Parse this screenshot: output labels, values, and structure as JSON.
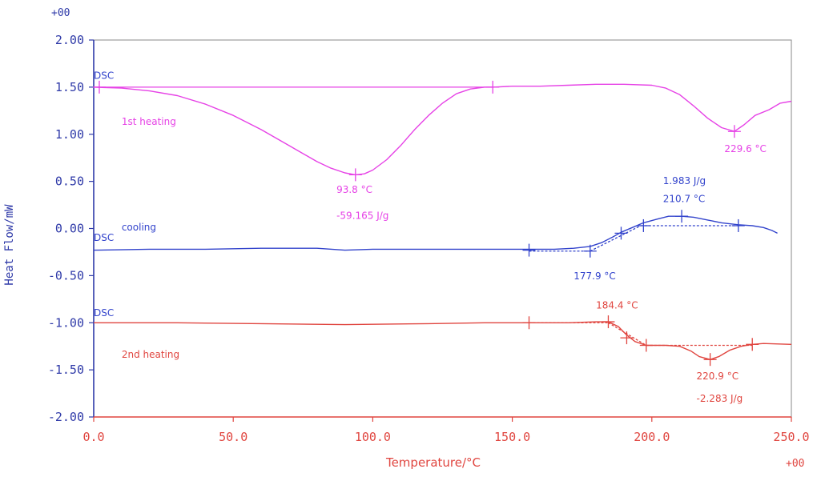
{
  "chart_data": {
    "type": "line",
    "title": "",
    "xlabel": "Temperature/°C",
    "ylabel": "Heat Flow/mW",
    "x_exponent_label": "+00",
    "y_exponent_label": "+00",
    "xlim": [
      0,
      250
    ],
    "ylim": [
      -2.0,
      2.0
    ],
    "grid": false,
    "legend": "none",
    "x_ticks": [
      0,
      50,
      100,
      150,
      200,
      250
    ],
    "x_tick_labels": [
      "0.0",
      "50.0",
      "100.0",
      "150.0",
      "200.0",
      "250.0"
    ],
    "y_ticks": [
      2.0,
      1.5,
      1.0,
      0.5,
      0.0,
      -0.5,
      -1.0,
      -1.5,
      -2.0
    ],
    "y_tick_labels": [
      "2.00",
      "1.50",
      "1.00",
      "0.50",
      "0.00",
      "-0.50",
      "-1.00",
      "-1.50",
      "-2.00"
    ],
    "colors": {
      "axis": "#2f3aa8",
      "xaxis": "#e0453f",
      "frame": "#8a8a8a",
      "magenta": "#e642e6",
      "blue": "#3344cc",
      "red": "#e0453f"
    },
    "series": [
      {
        "name": "DSC",
        "label": "1st heating",
        "color": "#e642e6",
        "x": [
          0,
          10,
          20,
          30,
          40,
          50,
          60,
          70,
          80,
          85,
          90,
          93.8,
          97,
          100,
          105,
          110,
          115,
          120,
          125,
          130,
          135,
          140,
          143,
          150,
          160,
          170,
          180,
          190,
          200,
          205,
          210,
          215,
          220,
          225,
          229.6,
          233,
          237,
          242,
          246,
          250
        ],
        "y": [
          1.5,
          1.49,
          1.46,
          1.41,
          1.32,
          1.2,
          1.05,
          0.88,
          0.71,
          0.64,
          0.59,
          0.57,
          0.58,
          0.62,
          0.73,
          0.88,
          1.05,
          1.2,
          1.33,
          1.43,
          1.48,
          1.5,
          1.5,
          1.51,
          1.51,
          1.52,
          1.53,
          1.53,
          1.52,
          1.49,
          1.42,
          1.3,
          1.17,
          1.07,
          1.03,
          1.1,
          1.2,
          1.26,
          1.33,
          1.35
        ]
      },
      {
        "name": "DSC",
        "label": "cooling",
        "color": "#3344cc",
        "x": [
          0,
          20,
          40,
          60,
          80,
          90,
          100,
          120,
          140,
          156,
          165,
          172,
          177.9,
          182,
          186,
          189,
          193,
          197,
          202,
          206,
          210.7,
          215,
          220,
          225,
          231,
          236,
          240,
          243,
          245
        ],
        "y": [
          -0.23,
          -0.22,
          -0.22,
          -0.21,
          -0.21,
          -0.23,
          -0.22,
          -0.22,
          -0.22,
          -0.22,
          -0.22,
          -0.21,
          -0.19,
          -0.15,
          -0.09,
          -0.04,
          0.01,
          0.06,
          0.1,
          0.13,
          0.13,
          0.12,
          0.09,
          0.06,
          0.04,
          0.03,
          0.01,
          -0.02,
          -0.05
        ]
      },
      {
        "name": "DSC",
        "label": "2nd heating",
        "color": "#e0453f",
        "x": [
          0,
          30,
          60,
          90,
          120,
          140,
          156,
          170,
          180,
          184.4,
          188,
          191,
          194,
          198,
          205,
          210,
          214,
          217,
          220.9,
          224,
          228,
          232,
          236,
          240,
          250
        ],
        "y": [
          -1.0,
          -1.0,
          -1.01,
          -1.02,
          -1.01,
          -1.0,
          -1.0,
          -1.0,
          -0.99,
          -0.99,
          -1.04,
          -1.13,
          -1.2,
          -1.24,
          -1.24,
          -1.25,
          -1.3,
          -1.36,
          -1.39,
          -1.36,
          -1.29,
          -1.25,
          -1.23,
          -1.22,
          -1.23
        ]
      }
    ],
    "baselines": [
      {
        "series": 0,
        "color": "#e642e6",
        "x": [
          0,
          143
        ],
        "y": [
          1.5,
          1.5
        ]
      },
      {
        "series": 1,
        "color": "#3344cc",
        "x": [
          156,
          177.9
        ],
        "y": [
          -0.24,
          -0.24
        ]
      },
      {
        "series": 1,
        "color": "#3344cc",
        "x": [
          177.9,
          196
        ],
        "y": [
          -0.24,
          0.03
        ]
      },
      {
        "series": 1,
        "color": "#3344cc",
        "x": [
          196,
          231
        ],
        "y": [
          0.03,
          0.03
        ]
      },
      {
        "series": 2,
        "color": "#e0453f",
        "x": [
          156,
          184.4
        ],
        "y": [
          -1.0,
          -1.0
        ]
      },
      {
        "series": 2,
        "color": "#e0453f",
        "x": [
          184.4,
          198
        ],
        "y": [
          -1.0,
          -1.24
        ]
      },
      {
        "series": 2,
        "color": "#e0453f",
        "x": [
          198,
          236
        ],
        "y": [
          -1.24,
          -1.24
        ]
      }
    ],
    "markers": [
      {
        "color": "#e642e6",
        "x": 2,
        "y": 1.5
      },
      {
        "color": "#e642e6",
        "x": 143,
        "y": 1.5
      },
      {
        "color": "#e642e6",
        "x": 93.8,
        "y": 0.57
      },
      {
        "color": "#e642e6",
        "x": 229.6,
        "y": 1.03
      },
      {
        "color": "#3344cc",
        "x": 156,
        "y": -0.23
      },
      {
        "color": "#3344cc",
        "x": 177.9,
        "y": -0.24
      },
      {
        "color": "#3344cc",
        "x": 189,
        "y": -0.05
      },
      {
        "color": "#3344cc",
        "x": 197,
        "y": 0.03
      },
      {
        "color": "#3344cc",
        "x": 210.7,
        "y": 0.13
      },
      {
        "color": "#3344cc",
        "x": 231,
        "y": 0.03
      },
      {
        "color": "#e0453f",
        "x": 156,
        "y": -1.0
      },
      {
        "color": "#e0453f",
        "x": 184.4,
        "y": -0.99
      },
      {
        "color": "#e0453f",
        "x": 191,
        "y": -1.16
      },
      {
        "color": "#e0453f",
        "x": 198,
        "y": -1.24
      },
      {
        "color": "#e0453f",
        "x": 220.9,
        "y": -1.39
      },
      {
        "color": "#e0453f",
        "x": 236,
        "y": -1.23
      }
    ],
    "annotations": [
      {
        "text": "DSC",
        "color": "#3344cc",
        "x": 0,
        "y": 1.59
      },
      {
        "text": "1st heating",
        "color": "#e642e6",
        "x": 10,
        "y": 1.1
      },
      {
        "text": "93.8 °C",
        "color": "#e642e6",
        "x": 87,
        "y": 0.38
      },
      {
        "text": "-59.165 J/g",
        "color": "#e642e6",
        "x": 87,
        "y": 0.1
      },
      {
        "text": "229.6 °C",
        "color": "#e642e6",
        "x": 226,
        "y": 0.81
      },
      {
        "text": "1.983 J/g",
        "color": "#3344cc",
        "x": 204,
        "y": 0.47
      },
      {
        "text": "210.7 °C",
        "color": "#3344cc",
        "x": 204,
        "y": 0.28
      },
      {
        "text": "DSC",
        "color": "#3344cc",
        "x": 0,
        "y": -0.13
      },
      {
        "text": "cooling",
        "color": "#3344cc",
        "x": 10,
        "y": -0.02
      },
      {
        "text": "177.9 °C",
        "color": "#3344cc",
        "x": 172,
        "y": -0.54
      },
      {
        "text": "DSC",
        "color": "#3344cc",
        "x": 0,
        "y": -0.93
      },
      {
        "text": "184.4 °C",
        "color": "#e0453f",
        "x": 180,
        "y": -0.85
      },
      {
        "text": "2nd heating",
        "color": "#e0453f",
        "x": 10,
        "y": -1.37
      },
      {
        "text": "220.9 °C",
        "color": "#e0453f",
        "x": 216,
        "y": -1.6
      },
      {
        "text": "-2.283 J/g",
        "color": "#e0453f",
        "x": 216,
        "y": -1.84
      }
    ]
  }
}
